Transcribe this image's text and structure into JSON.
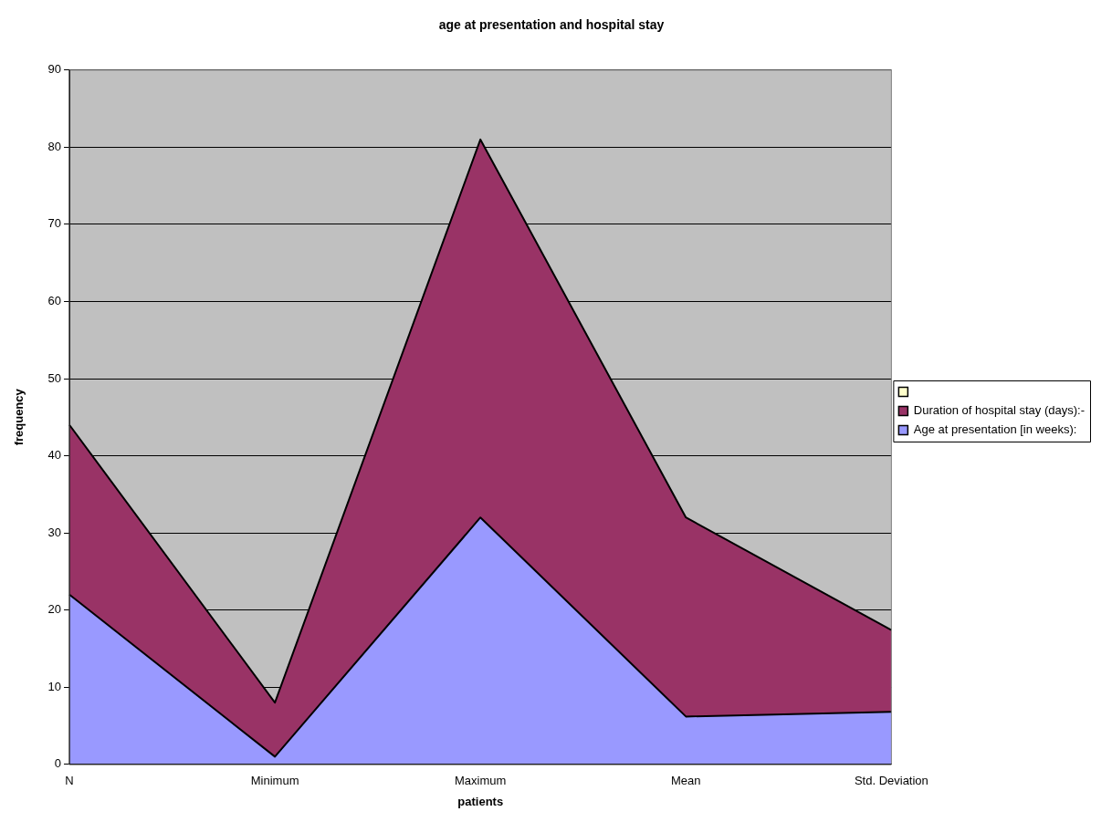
{
  "chart_data": {
    "type": "area",
    "title": "age at presentation and hospital stay",
    "xlabel": "patients",
    "ylabel": "frequency",
    "categories": [
      "N",
      "Minimum",
      "Maximum",
      "Mean",
      "Std. Deviation"
    ],
    "stacked": true,
    "ylim": [
      0,
      90
    ],
    "yticks": [
      0,
      10,
      20,
      30,
      40,
      50,
      60,
      70,
      80,
      90
    ],
    "grid": "y",
    "legend": "right",
    "series": [
      {
        "name": "Age at presentation [in weeks):",
        "color": "#9999ff",
        "values": [
          22,
          1,
          32,
          6.2,
          6.8
        ]
      },
      {
        "name": "Duration of hospital stay (days):-",
        "color": "#993366",
        "values": [
          22,
          7,
          49,
          25.8,
          10.6
        ]
      },
      {
        "color": "#ffffcc",
        "values": [
          null,
          null,
          null,
          null,
          null
        ]
      }
    ]
  }
}
